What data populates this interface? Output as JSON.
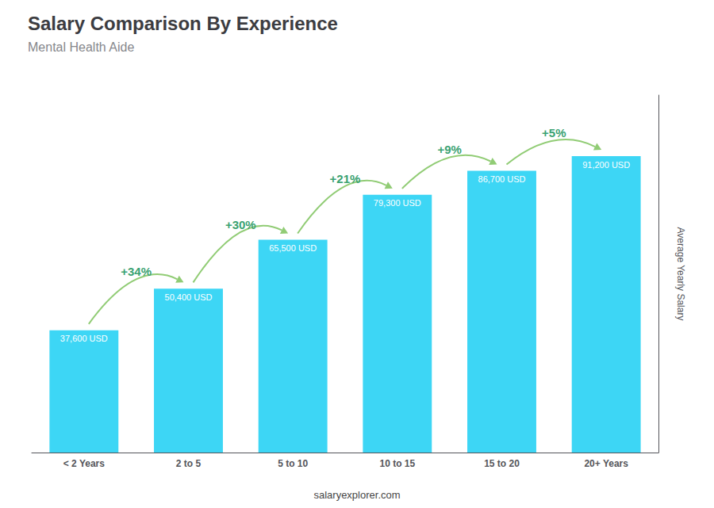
{
  "chart_data": {
    "type": "bar",
    "title": "Salary Comparison By Experience",
    "subtitle": "Mental Health Aide",
    "categories": [
      "< 2 Years",
      "2 to 5",
      "5 to 10",
      "10 to 15",
      "15 to 20",
      "20+ Years"
    ],
    "values": [
      37600,
      50400,
      65500,
      79300,
      86700,
      91200
    ],
    "value_labels": [
      "37,600 USD",
      "50,400 USD",
      "65,500 USD",
      "79,300 USD",
      "86,700 USD",
      "91,200 USD"
    ],
    "data_labels": true,
    "annotations": [
      "+34%",
      "+30%",
      "+21%",
      "+9%",
      "+5%"
    ],
    "color": "#3dd6f5",
    "ylabel": "Average Yearly Salary",
    "footer": "salaryexplorer.com",
    "ylim": [
      0,
      110000
    ],
    "tick_labels": "x",
    "grid": false
  }
}
